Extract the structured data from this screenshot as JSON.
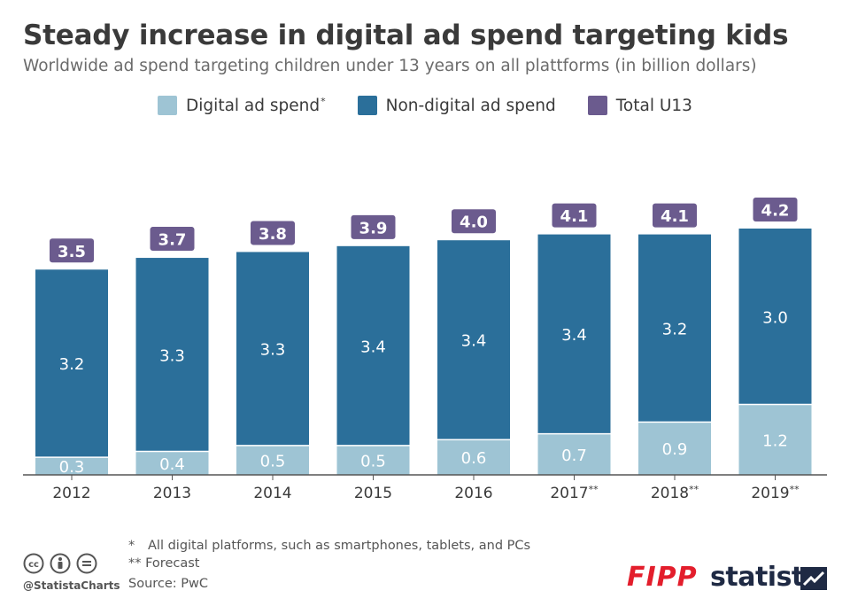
{
  "header": {
    "title": "Steady increase in digital ad spend targeting kids",
    "subtitle": "Worldwide ad spend targeting children under 13 years on all plattforms (in billion dollars)"
  },
  "legend": {
    "digital_label": "Digital ad spend",
    "digital_marker": "*",
    "nondigital_label": "Non-digital ad spend",
    "total_label": "Total U13"
  },
  "colors": {
    "digital": "#9ec4d4",
    "nondigital": "#2b6f9a",
    "total": "#6b5b8e",
    "axis": "#555555"
  },
  "chart_data": {
    "type": "bar",
    "stacked": true,
    "title": "Steady increase in digital ad spend targeting kids",
    "subtitle": "Worldwide ad spend targeting children under 13 years on all plattforms (in billion dollars)",
    "categories": [
      "2012",
      "2013",
      "2014",
      "2015",
      "2016",
      "2017**",
      "2018**",
      "2019**"
    ],
    "series": [
      {
        "name": "Digital ad spend",
        "values": [
          0.3,
          0.4,
          0.5,
          0.5,
          0.6,
          0.7,
          0.9,
          1.2
        ]
      },
      {
        "name": "Non-digital ad spend",
        "values": [
          3.2,
          3.3,
          3.3,
          3.4,
          3.4,
          3.4,
          3.2,
          3.0
        ]
      }
    ],
    "totals": {
      "name": "Total U13",
      "values": [
        3.5,
        3.7,
        3.8,
        3.9,
        4.0,
        4.1,
        4.1,
        4.2
      ]
    },
    "xlabel": "",
    "ylabel": "",
    "ylim": [
      0,
      4.5
    ],
    "grid": false,
    "legend_position": "top-center"
  },
  "footnotes": {
    "mark1": "*",
    "note1": "All digital platforms, such as smartphones, tablets, and PCs",
    "note2": "** Forecast",
    "source": "Source: PwC"
  },
  "branding": {
    "handle": "@StatistaCharts",
    "fipp": "FIPP",
    "statista": "statista"
  }
}
